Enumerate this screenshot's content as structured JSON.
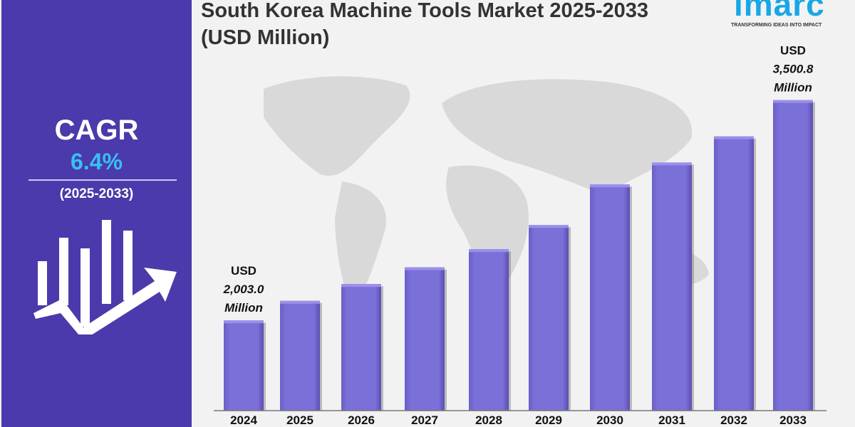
{
  "title": "South Korea Machine Tools Market 2025-2033 (USD Million)",
  "logo": {
    "name": "imarc",
    "tagline": "TRANSFORMING IDEAS INTO IMPACT"
  },
  "sidebar": {
    "cagr_label": "CAGR",
    "cagr_value": "6.4%",
    "period": "(2025-2033)"
  },
  "colors": {
    "bar": "#7b6fd8",
    "sidebar": "#4a3aab",
    "cagr_value": "#38c0f2"
  },
  "chart_data": {
    "type": "bar",
    "title": "South Korea Machine Tools Market 2025-2033 (USD Million)",
    "categories": [
      "2024",
      "2025",
      "2026",
      "2027",
      "2028",
      "2029",
      "2030",
      "2031",
      "2032",
      "2033"
    ],
    "values": [
      2003.0,
      2136,
      2250,
      2364,
      2487,
      2651,
      2927,
      3076,
      3254,
      3500.8
    ],
    "ylim": [
      1390,
      3600
    ],
    "grid": false,
    "annotations": [
      {
        "category": "2024",
        "lines": [
          "USD",
          "2,003.0",
          "Million"
        ]
      },
      {
        "category": "2033",
        "lines": [
          "USD",
          "3,500.8",
          "Million"
        ]
      }
    ]
  }
}
